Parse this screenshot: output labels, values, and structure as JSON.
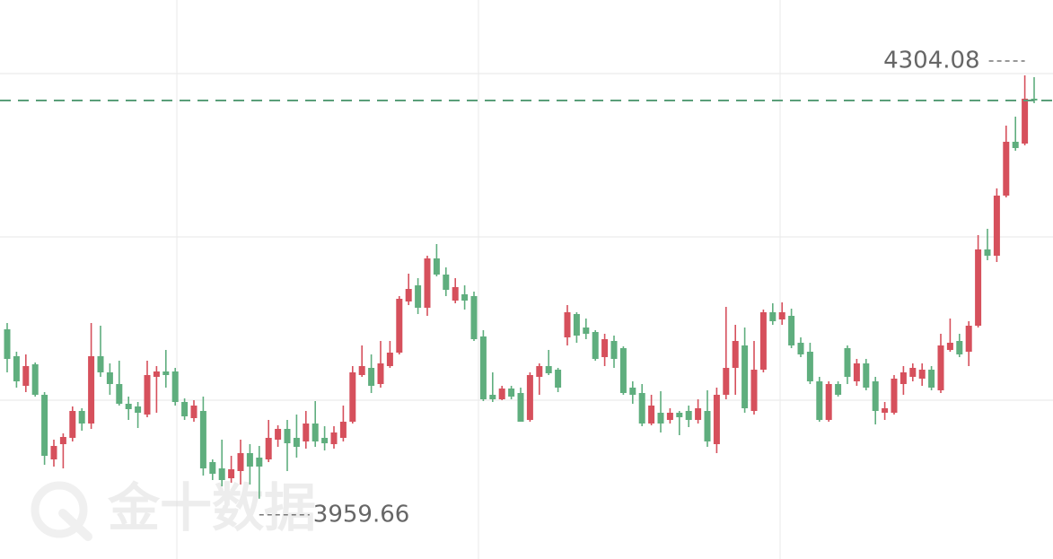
{
  "chart_data": {
    "type": "candlestick",
    "watermark": "金十数据",
    "up_color": "#d6505c",
    "down_color": "#5fae7e",
    "last_line_color": "#5a9f7a",
    "ylim": [
      3910.61,
      4365.4
    ],
    "open": [
      4097.49,
      4075.59,
      4051.5,
      4069.02,
      4044.2,
      3991.64,
      4004.05,
      4009.16,
      4031.06,
      4020.84,
      4075.59,
      4062.45,
      4052.96,
      4036.9,
      4034.71,
      4028.14,
      4058.8,
      4063.18,
      4063.18,
      4038.36,
      4025.22,
      4031.06,
      3989.45,
      3984.34,
      3976.31,
      3982.15,
      3996.75,
      3993.1,
      3991.64,
      4007.7,
      4016.46,
      4009.16,
      4006.24,
      4020.84,
      4009.16,
      4004.05,
      4009.16,
      4022.3,
      4060.26,
      4066.1,
      4052.96,
      4067.56,
      4078.51,
      4120.12,
      4133.26,
      4115.01,
      4155.16,
      4142.02,
      4120.85,
      4125.96,
      4124.5,
      4091.65,
      4044.2,
      4040.55,
      4049.31,
      4045.66,
      4023.76,
      4058.8,
      4067.56,
      4064.64,
      4090.92,
      4109.9,
      4098.95,
      4095.3,
      4074.86,
      4088.0,
      4082.16,
      4050.04,
      4045.66,
      4020.84,
      4029.6,
      4023.76,
      4029.6,
      4031.06,
      4023.76,
      4031.06,
      4004.05,
      4044.2,
      4066.1,
      4084.35,
      4031.06,
      4064.64,
      4111.36,
      4105.52,
      4108.44,
      4086.54,
      4079.24,
      4055.15,
      4023.76,
      4052.96,
      4082.16,
      4055.15,
      4069.75,
      4055.15,
      4029.6,
      4029.6,
      4052.96,
      4058.8,
      4057.34,
      4064.64,
      4047.85,
      4080.7,
      4088.0,
      4079.24,
      4100.41,
      4162.46,
      4157.35,
      4206.26,
      4250.06,
      4248.6,
      4285.1
    ],
    "high": [
      4102.6,
      4079.24,
      4077.05,
      4070.48,
      4046.39,
      4007.7,
      4012.81,
      4034.71,
      4033.25,
      4102.6,
      4100.41,
      4069.75,
      4071.94,
      4042.74,
      4038.36,
      4071.94,
      4067.56,
      4080.7,
      4066.1,
      4041.28,
      4039.82,
      4042.74,
      3991.64,
      4007.7,
      3994.56,
      4007.7,
      4004.05,
      4002.59,
      4023.76,
      4019.38,
      4023.76,
      4028.14,
      4031.06,
      4039.09,
      4018.65,
      4018.65,
      4035.44,
      4067.56,
      4084.35,
      4077.05,
      4088.0,
      4088.0,
      4124.5,
      4142.75,
      4139.1,
      4157.35,
      4166.84,
      4147.86,
      4139.1,
      4133.26,
      4128.15,
      4096.76,
      4062.45,
      4051.5,
      4051.5,
      4050.04,
      4062.45,
      4069.75,
      4080.7,
      4066.1,
      4117.2,
      4111.36,
      4106.25,
      4096.76,
      4093.84,
      4092.38,
      4083.62,
      4055.15,
      4052.96,
      4044.2,
      4047.12,
      4033.25,
      4031.06,
      4035.44,
      4040.55,
      4047.85,
      4050.04,
      4115.74,
      4101.14,
      4098.95,
      4088.0,
      4113.55,
      4118.66,
      4119.39,
      4114.28,
      4090.92,
      4086.54,
      4058.8,
      4055.15,
      4055.15,
      4084.35,
      4073.4,
      4073.4,
      4058.8,
      4038.36,
      4060.26,
      4067.56,
      4069.75,
      4069.75,
      4067.56,
      4093.84,
      4106.25,
      4093.84,
      4104.06,
      4174.14,
      4179.25,
      4212.1,
      4263.2,
      4270.5,
      4304.08,
      4302.62
    ],
    "low": [
      4062.45,
      4050.04,
      4046.39,
      4042.74,
      3987.26,
      3985.8,
      3984.34,
      4006.24,
      4015.0,
      4016.46,
      4058.8,
      4044.2,
      4035.44,
      4023.76,
      4017.19,
      4025.95,
      4029.6,
      4050.04,
      4035.44,
      4023.76,
      4022.3,
      3978.5,
      3974.85,
      3969.74,
      3972.66,
      3971.2,
      3971.2,
      3959.66,
      3989.45,
      4001.86,
      3982.15,
      3993.1,
      4000.4,
      4001.86,
      3998.94,
      4000.4,
      4006.24,
      4020.84,
      4058.8,
      4045.66,
      4050.04,
      4066.1,
      4077.05,
      4117.2,
      4109.9,
      4108.44,
      4140.56,
      4124.5,
      4118.66,
      4113.55,
      4088.0,
      4039.09,
      4038.36,
      4039.82,
      4040.55,
      4022.3,
      4022.3,
      4044.2,
      4060.26,
      4046.39,
      4084.35,
      4086.54,
      4089.46,
      4071.94,
      4067.56,
      4066.1,
      4044.2,
      4036.9,
      4018.65,
      4019.38,
      4013.54,
      4020.84,
      4011.35,
      4017.92,
      4020.84,
      4001.86,
      3996.75,
      4040.55,
      4044.2,
      4029.6,
      4028.14,
      4062.45,
      4101.14,
      4101.14,
      4082.16,
      4074.86,
      4052.96,
      4022.3,
      4022.3,
      4042.74,
      4052.96,
      4051.5,
      4047.85,
      4020.11,
      4023.76,
      4028.14,
      4044.2,
      4055.15,
      4051.5,
      4047.85,
      4045.66,
      4079.24,
      4074.86,
      4067.56,
      4098.95,
      4153.7,
      4152.24,
      4204.8,
      4242.76,
      4247.14,
      4281.45
    ],
    "close": [
      4073.4,
      4055.15,
      4067.56,
      4044.2,
      3994.56,
      4002.59,
      4009.89,
      4031.06,
      4020.84,
      4075.59,
      4062.45,
      4052.96,
      4036.9,
      4032.52,
      4029.6,
      4060.26,
      4063.18,
      4060.26,
      4038.36,
      4026.68,
      4035.44,
      3984.34,
      3979.96,
      3974.85,
      3983.61,
      3996.75,
      3985.8,
      3985.8,
      4009.16,
      4016.46,
      4004.78,
      4001.86,
      4020.84,
      4006.24,
      4004.78,
      4013.54,
      4022.3,
      4062.45,
      4067.56,
      4051.5,
      4069.75,
      4078.51,
      4122.31,
      4130.34,
      4115.01,
      4155.16,
      4142.02,
      4129.61,
      4131.8,
      4120.85,
      4089.46,
      4040.55,
      4040.55,
      4049.31,
      4042.74,
      4022.3,
      4060.26,
      4067.56,
      4061.72,
      4050.04,
      4111.36,
      4092.38,
      4093.84,
      4073.4,
      4089.46,
      4073.4,
      4045.66,
      4044.2,
      4020.84,
      4035.44,
      4020.84,
      4029.6,
      4025.95,
      4023.76,
      4033.25,
      4006.24,
      4044.2,
      4066.1,
      4088.0,
      4033.25,
      4064.64,
      4111.36,
      4104.06,
      4111.36,
      4084.35,
      4077.05,
      4055.15,
      4023.76,
      4052.96,
      4044.2,
      4058.8,
      4069.75,
      4050.04,
      4031.06,
      4033.25,
      4057.34,
      4062.45,
      4066.1,
      4064.64,
      4050.04,
      4084.35,
      4086.54,
      4077.05,
      4100.41,
      4162.46,
      4157.35,
      4206.26,
      4250.06,
      4244.95,
      4285.1,
      4283.64
    ]
  }
}
